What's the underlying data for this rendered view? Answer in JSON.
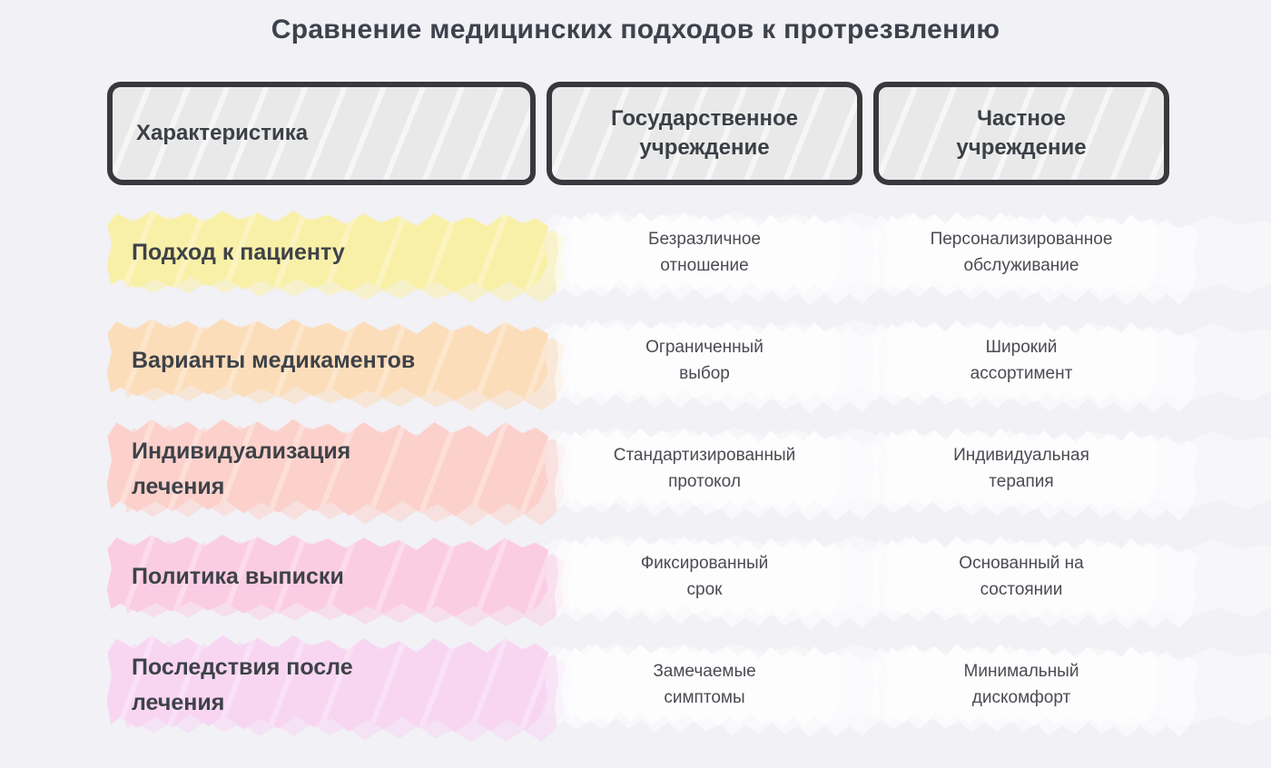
{
  "title": "Сравнение медицинских подходов к протрезвлению",
  "table": {
    "headers": [
      {
        "label": "Характеристика"
      },
      {
        "label": "Государственное\nучреждение"
      },
      {
        "label": "Частное\nучреждение"
      }
    ],
    "rows": [
      {
        "feature": "Подход к пациенту",
        "state": "Безразличное\nотношение",
        "private": "Персонализированное\nобслуживание",
        "highlight": "#f9f0a8"
      },
      {
        "feature": "Варианты медикаментов",
        "state": "Ограниченный\nвыбор",
        "private": "Широкий\nассортимент",
        "highlight": "#fcddba"
      },
      {
        "feature": "Индивидуализация\nлечения",
        "state": "Стандартизированный\nпротокол",
        "private": "Индивидуальная\nтерапия",
        "highlight": "#fcd1cb"
      },
      {
        "feature": "Политика выписки",
        "state": "Фиксированный\nсрок",
        "private": "Основанный на\nсостоянии",
        "highlight": "#fbcde4"
      },
      {
        "feature": "Последствия после\nлечения",
        "state": "Замечаемые\nсимптомы",
        "private": "Минимальный\nдискомфорт",
        "highlight": "#f8d6f2"
      }
    ]
  },
  "palette": {
    "page_background": "#f1f1f6",
    "header_fill": "#e9e9ea",
    "header_border": "#39393d",
    "title_text": "#3d424c",
    "feature_text": "#3e4248",
    "value_text": "#4b4b52",
    "row_highlights": [
      "#f9f0a8",
      "#fcddba",
      "#fcd1cb",
      "#fbcde4",
      "#f8d6f2"
    ]
  },
  "chart_data": {
    "type": "table",
    "title": "Сравнение медицинских подходов к протрезвлению",
    "columns": [
      "Характеристика",
      "Государственное учреждение",
      "Частное учреждение"
    ],
    "rows": [
      [
        "Подход к пациенту",
        "Безразличное отношение",
        "Персонализированное обслуживание"
      ],
      [
        "Варианты медикаментов",
        "Ограниченный выбор",
        "Широкий ассортимент"
      ],
      [
        "Индивидуализация лечения",
        "Стандартизированный протокол",
        "Индивидуальная терапия"
      ],
      [
        "Политика выписки",
        "Фиксированный срок",
        "Основанный на состоянии"
      ],
      [
        "Последствия после лечения",
        "Замечаемые симптомы",
        "Минимальный дискомфорт"
      ]
    ],
    "row_highlight_colors": [
      "#f9f0a8",
      "#fcddba",
      "#fcd1cb",
      "#fbcde4",
      "#f8d6f2"
    ]
  }
}
